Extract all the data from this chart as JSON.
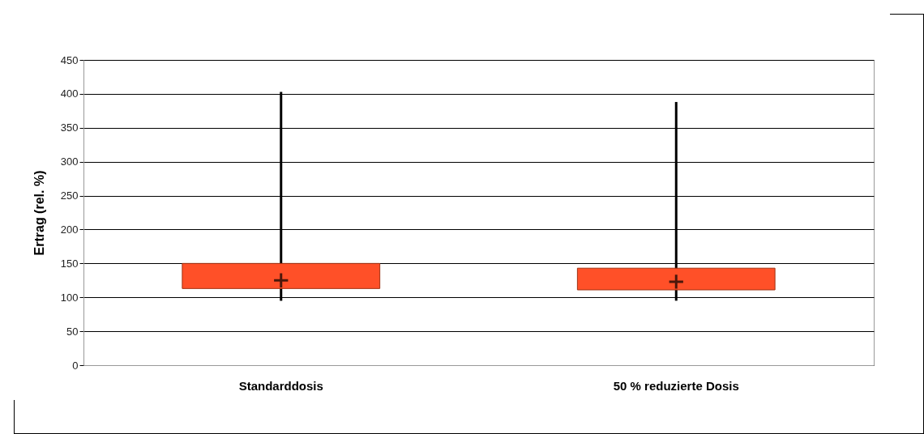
{
  "chart_data": {
    "type": "box",
    "ylabel": "Ertrag  (rel. %)",
    "categories": [
      "Standarddosis",
      "50 % reduzierte Dosis"
    ],
    "series": [
      {
        "color": "#ff5028",
        "boxes": [
          {
            "low": 95,
            "q1": 113,
            "median": 125,
            "q3": 150,
            "high": 403
          },
          {
            "low": 95,
            "q1": 111,
            "median": 123,
            "q3": 143,
            "high": 388
          }
        ]
      }
    ],
    "ylim": [
      0,
      450
    ],
    "yticks": [
      0,
      50,
      100,
      150,
      200,
      250,
      300,
      350,
      400,
      450
    ],
    "grid": "y"
  }
}
